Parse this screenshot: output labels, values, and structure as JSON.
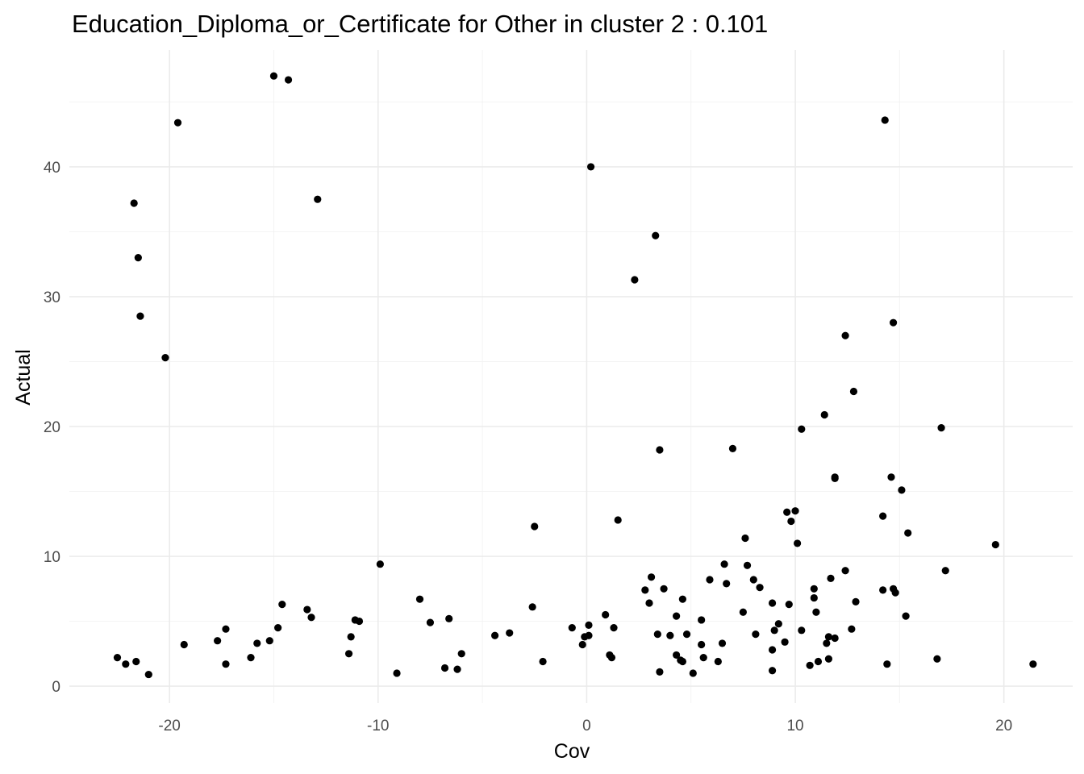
{
  "chart_data": {
    "type": "scatter",
    "title": "Education_Diploma_or_Certificate for Other in cluster 2 : 0.101",
    "xlabel": "Cov",
    "ylabel": "Actual",
    "xlim": [
      -24.8,
      23.3
    ],
    "ylim": [
      -1.3,
      49.0
    ],
    "x_ticks": [
      -20,
      -10,
      0,
      10,
      20
    ],
    "x_tick_labels": [
      "-20",
      "-10",
      "0",
      "10",
      "20"
    ],
    "y_ticks": [
      0,
      10,
      20,
      30,
      40
    ],
    "y_tick_labels": [
      "0",
      "10",
      "20",
      "30",
      "40"
    ],
    "grid": true,
    "legend": "none",
    "point_color": "#000000",
    "points": [
      [
        -15.0,
        47.0
      ],
      [
        -14.3,
        46.7
      ],
      [
        -19.6,
        43.4
      ],
      [
        -21.7,
        37.2
      ],
      [
        -12.9,
        37.5
      ],
      [
        -21.5,
        33.0
      ],
      [
        -21.4,
        28.5
      ],
      [
        -20.2,
        25.3
      ],
      [
        -22.5,
        2.2
      ],
      [
        -22.1,
        1.7
      ],
      [
        -21.6,
        1.9
      ],
      [
        -21.0,
        0.9
      ],
      [
        -19.3,
        3.2
      ],
      [
        -17.7,
        3.5
      ],
      [
        -17.3,
        4.4
      ],
      [
        -17.3,
        1.7
      ],
      [
        -16.1,
        2.2
      ],
      [
        -15.8,
        3.3
      ],
      [
        -15.2,
        3.5
      ],
      [
        -14.8,
        4.5
      ],
      [
        -14.6,
        6.3
      ],
      [
        -13.4,
        5.9
      ],
      [
        -13.2,
        5.3
      ],
      [
        -11.4,
        2.5
      ],
      [
        -11.3,
        3.8
      ],
      [
        -11.1,
        5.1
      ],
      [
        -10.9,
        5.0
      ],
      [
        -9.9,
        9.4
      ],
      [
        -9.1,
        1.0
      ],
      [
        -8.0,
        6.7
      ],
      [
        -7.5,
        4.9
      ],
      [
        -6.8,
        1.4
      ],
      [
        -6.6,
        5.2
      ],
      [
        -6.2,
        1.3
      ],
      [
        -6.0,
        2.5
      ],
      [
        -4.4,
        3.9
      ],
      [
        -3.7,
        4.1
      ],
      [
        -2.6,
        6.1
      ],
      [
        -2.5,
        12.3
      ],
      [
        -2.1,
        1.9
      ],
      [
        -0.7,
        4.5
      ],
      [
        -0.2,
        3.2
      ],
      [
        -0.1,
        3.8
      ],
      [
        0.1,
        4.7
      ],
      [
        0.2,
        40.0
      ],
      [
        0.1,
        3.9
      ],
      [
        0.9,
        5.5
      ],
      [
        1.1,
        2.4
      ],
      [
        1.2,
        2.2
      ],
      [
        1.3,
        4.5
      ],
      [
        1.5,
        12.8
      ],
      [
        2.3,
        31.3
      ],
      [
        2.8,
        7.4
      ],
      [
        3.0,
        6.4
      ],
      [
        3.1,
        8.4
      ],
      [
        3.3,
        34.7
      ],
      [
        3.4,
        4.0
      ],
      [
        3.5,
        18.2
      ],
      [
        3.5,
        1.1
      ],
      [
        3.7,
        7.5
      ],
      [
        4.0,
        3.9
      ],
      [
        4.3,
        5.4
      ],
      [
        4.3,
        2.4
      ],
      [
        4.5,
        2.0
      ],
      [
        4.6,
        6.7
      ],
      [
        4.6,
        1.9
      ],
      [
        4.8,
        4.0
      ],
      [
        5.1,
        1.0
      ],
      [
        5.5,
        3.2
      ],
      [
        5.5,
        5.1
      ],
      [
        5.6,
        2.2
      ],
      [
        5.9,
        8.2
      ],
      [
        6.3,
        1.9
      ],
      [
        6.5,
        3.3
      ],
      [
        6.6,
        9.4
      ],
      [
        6.7,
        7.9
      ],
      [
        7.0,
        18.3
      ],
      [
        7.5,
        5.7
      ],
      [
        7.6,
        11.4
      ],
      [
        7.7,
        9.3
      ],
      [
        8.0,
        8.2
      ],
      [
        8.1,
        4.0
      ],
      [
        8.3,
        7.6
      ],
      [
        8.9,
        1.2
      ],
      [
        8.9,
        2.8
      ],
      [
        8.9,
        6.4
      ],
      [
        9.0,
        4.3
      ],
      [
        9.2,
        4.8
      ],
      [
        9.5,
        3.4
      ],
      [
        9.6,
        13.4
      ],
      [
        9.7,
        6.3
      ],
      [
        9.8,
        12.7
      ],
      [
        10.0,
        13.5
      ],
      [
        10.1,
        11.0
      ],
      [
        10.3,
        19.8
      ],
      [
        10.3,
        4.3
      ],
      [
        10.7,
        1.6
      ],
      [
        10.9,
        7.5
      ],
      [
        10.9,
        6.8
      ],
      [
        11.0,
        5.7
      ],
      [
        11.1,
        1.9
      ],
      [
        11.4,
        20.9
      ],
      [
        11.5,
        3.3
      ],
      [
        11.6,
        3.8
      ],
      [
        11.6,
        2.1
      ],
      [
        11.7,
        8.3
      ],
      [
        11.9,
        3.7
      ],
      [
        11.9,
        16.0
      ],
      [
        11.9,
        16.1
      ],
      [
        12.4,
        8.9
      ],
      [
        12.4,
        27.0
      ],
      [
        12.7,
        4.4
      ],
      [
        12.8,
        22.7
      ],
      [
        12.9,
        6.5
      ],
      [
        14.2,
        13.1
      ],
      [
        14.2,
        7.4
      ],
      [
        14.3,
        43.6
      ],
      [
        14.4,
        1.7
      ],
      [
        14.6,
        16.1
      ],
      [
        14.7,
        28.0
      ],
      [
        14.7,
        7.5
      ],
      [
        14.8,
        7.2
      ],
      [
        15.1,
        15.1
      ],
      [
        15.3,
        5.4
      ],
      [
        15.4,
        11.8
      ],
      [
        16.8,
        2.1
      ],
      [
        17.0,
        19.9
      ],
      [
        17.2,
        8.9
      ],
      [
        19.6,
        10.9
      ],
      [
        21.4,
        1.7
      ]
    ]
  }
}
